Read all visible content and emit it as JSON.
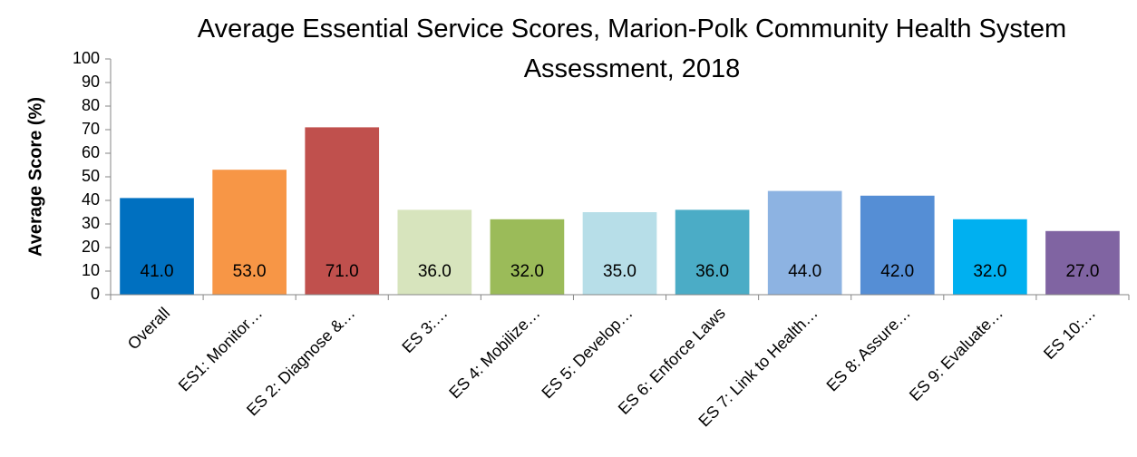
{
  "chart_data": {
    "type": "bar",
    "title": "Average Essential Service Scores, Marion-Polk Community Health System Assessment, 2018",
    "ylabel": "Average Score (%)",
    "categories": [
      "Overall",
      "ES1: Monitor…",
      "ES 2: Diagnose &…",
      "ES 3:…",
      "ES 4: Mobilize…",
      "ES 5: Develop…",
      "ES 6: Enforce Laws",
      "ES 7: Link to Health…",
      "ES 8: Assure…",
      "ES 9: Evaluate…",
      "ES 10:…"
    ],
    "values": [
      41,
      53,
      71,
      36,
      32,
      35,
      36,
      44,
      42,
      32,
      27
    ],
    "value_labels": [
      "41.0",
      "53.0",
      "71.0",
      "36.0",
      "32.0",
      "35.0",
      "36.0",
      "44.0",
      "42.0",
      "32.0",
      "27.0"
    ],
    "colors": [
      "#0070c0",
      "#f79646",
      "#c0504d",
      "#d7e4bd",
      "#9bbb59",
      "#b7dee8",
      "#4bacc6",
      "#8db3e2",
      "#558ed5",
      "#00b0f0",
      "#8064a2"
    ],
    "ylim": [
      0,
      100
    ],
    "yticks": [
      0,
      10,
      20,
      30,
      40,
      50,
      60,
      70,
      80,
      90,
      100
    ],
    "grid": false
  }
}
